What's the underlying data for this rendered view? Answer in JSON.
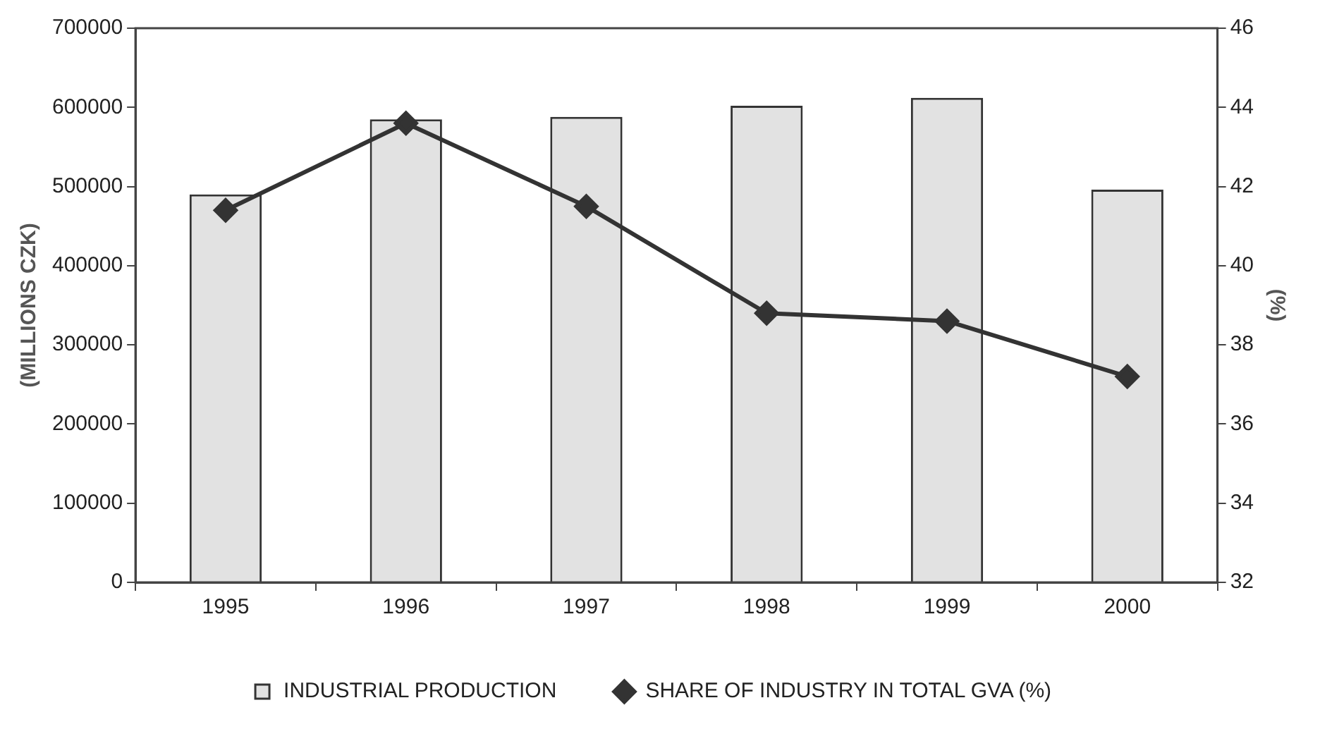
{
  "chart_data": {
    "type": "bar",
    "categories": [
      "1995",
      "1996",
      "1997",
      "1998",
      "1999",
      "2000"
    ],
    "series": [
      {
        "name": "INDUSTRIAL PRODUCTION",
        "color": "#e2e2e2",
        "values": [
          490000,
          585000,
          588000,
          602000,
          612000,
          496000
        ]
      },
      {
        "name": "SHARE OF INDUSTRY IN TOTAL GVA (%)",
        "type": "line",
        "axis": "y2",
        "color": "#333333",
        "marker": "diamond",
        "values": [
          41.4,
          43.6,
          41.5,
          38.8,
          38.6,
          37.2
        ]
      }
    ],
    "ylabel": "(MILLIONS CZK)",
    "y2label": "(%)",
    "ylim": [
      0,
      700000
    ],
    "yticks": [
      0,
      100000,
      200000,
      300000,
      400000,
      500000,
      600000,
      700000
    ],
    "y2lim": [
      32,
      46
    ],
    "y2ticks": [
      32,
      34,
      36,
      38,
      40,
      42,
      44,
      46
    ],
    "grid": false,
    "legend": "bottom"
  }
}
